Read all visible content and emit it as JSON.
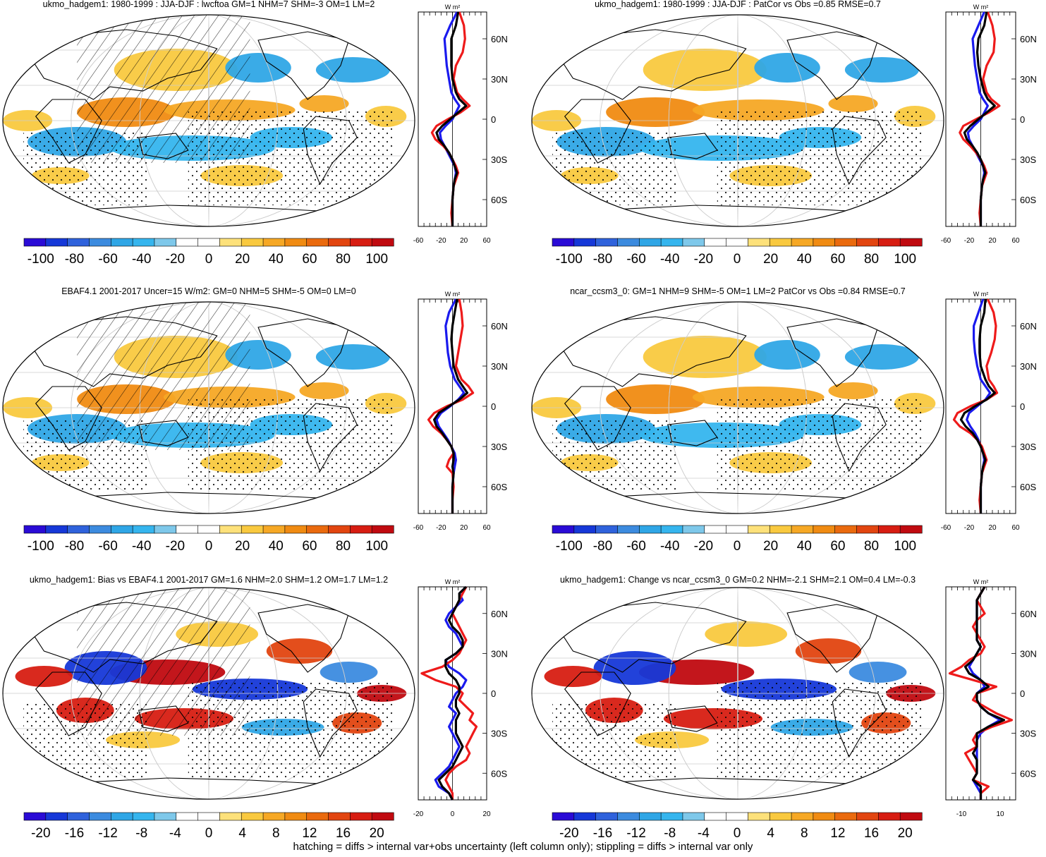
{
  "footer": "hatching = diffs > internal var+obs uncertainty (left column only); stippling = diffs > internal var only",
  "profile_units": "W m²",
  "colors": {
    "background": "#ffffff",
    "ocean_base": "#ffffff",
    "coast": "#000000",
    "zonal_lines": [
      "#1a1aee",
      "#ee1a1a",
      "#000000"
    ]
  },
  "palette": [
    "#2a0bd6",
    "#1638d8",
    "#2f62dc",
    "#3c8bdf",
    "#2fa6e6",
    "#35b5ee",
    "#7ec8ea",
    "#ffffff",
    "#ffffff",
    "#fde17a",
    "#f9c93f",
    "#f6a825",
    "#f08b12",
    "#ea6a0e",
    "#e24510",
    "#d71d12",
    "#c00a10"
  ],
  "chart_data": [
    {
      "type": "map+zonal-profile",
      "title": "ukmo_hadgem1: 1980-1999 : JJA-DJF : lwcftoa GM=1 NHM=7 SHM=-3 OM=1 LM=2",
      "overlays": [
        "hatching",
        "stippling"
      ],
      "colorbar": {
        "ticks": [
          "-100",
          "-80",
          "-60",
          "-40",
          "-20",
          "0",
          "20",
          "40",
          "60",
          "80",
          "100"
        ],
        "range": [
          -110,
          110
        ]
      },
      "profile": {
        "xlim": [
          -60,
          60
        ],
        "xticks": [
          "-60",
          "-20",
          "20",
          "60"
        ],
        "xtick_values": [
          -60,
          -20,
          20,
          60
        ],
        "yticks": [
          "60N",
          "30N",
          "0",
          "30S",
          "60S"
        ],
        "ytick_values": [
          60,
          30,
          0,
          -30,
          -60
        ],
        "lat": [
          80,
          70,
          60,
          50,
          40,
          30,
          20,
          15,
          10,
          5,
          0,
          -5,
          -10,
          -15,
          -20,
          -25,
          -30,
          -35,
          -40,
          -45,
          -50,
          -60,
          -70,
          -80
        ],
        "series": [
          {
            "name": "blue",
            "values": [
              8,
              -4,
              -14,
              -12,
              -10,
              -6,
              -2,
              4,
              12,
              6,
              0,
              -12,
              -22,
              -20,
              -14,
              -8,
              -2,
              4,
              6,
              4,
              2,
              0,
              0,
              0
            ]
          },
          {
            "name": "red",
            "values": [
              12,
              20,
              22,
              18,
              6,
              2,
              8,
              18,
              30,
              14,
              -8,
              -28,
              -36,
              -30,
              -16,
              -6,
              0,
              6,
              10,
              6,
              2,
              0,
              -2,
              0
            ]
          },
          {
            "name": "black",
            "values": [
              10,
              6,
              -2,
              -2,
              -2,
              0,
              6,
              12,
              24,
              10,
              -4,
              -18,
              -28,
              -24,
              -14,
              -6,
              0,
              4,
              8,
              4,
              2,
              0,
              0,
              0
            ]
          }
        ]
      }
    },
    {
      "type": "map+zonal-profile",
      "title": "ukmo_hadgem1: 1980-1999 : JJA-DJF : PatCor vs Obs =0.85 RMSE=0.7",
      "overlays": [
        "stippling"
      ],
      "colorbar": {
        "ticks": [
          "-100",
          "-80",
          "-60",
          "-40",
          "-20",
          "0",
          "20",
          "40",
          "60",
          "80",
          "100"
        ],
        "range": [
          -110,
          110
        ]
      },
      "profile": {
        "xlim": [
          -60,
          60
        ],
        "xticks": [
          "-60",
          "-20",
          "20",
          "60"
        ],
        "xtick_values": [
          -60,
          -20,
          20,
          60
        ],
        "yticks": [
          "60N",
          "30N",
          "0",
          "30S",
          "60S"
        ],
        "ytick_values": [
          60,
          30,
          0,
          -30,
          -60
        ],
        "lat": [
          80,
          70,
          60,
          50,
          40,
          30,
          20,
          15,
          10,
          5,
          0,
          -5,
          -10,
          -15,
          -20,
          -25,
          -30,
          -35,
          -40,
          -45,
          -50,
          -60,
          -70,
          -80
        ],
        "series": [
          {
            "name": "blue",
            "values": [
              6,
              -4,
              -14,
              -12,
              -10,
              -6,
              -2,
              4,
              12,
              6,
              0,
              -12,
              -22,
              -20,
              -14,
              -8,
              -2,
              4,
              6,
              4,
              2,
              0,
              0,
              0
            ]
          },
          {
            "name": "red",
            "values": [
              12,
              20,
              24,
              22,
              10,
              4,
              10,
              18,
              32,
              14,
              -8,
              -30,
              -36,
              -30,
              -18,
              -8,
              0,
              6,
              10,
              6,
              2,
              0,
              -2,
              0
            ]
          },
          {
            "name": "black",
            "values": [
              10,
              6,
              -4,
              -6,
              -4,
              0,
              6,
              12,
              24,
              10,
              -4,
              -18,
              -28,
              -24,
              -14,
              -6,
              0,
              4,
              8,
              4,
              2,
              0,
              0,
              0
            ]
          }
        ]
      }
    },
    {
      "type": "map+zonal-profile",
      "title": "EBAF4.1 2001-2017 Uncer=15 W/m2: GM=0 NHM=5 SHM=-5 OM=0 LM=0",
      "overlays": [
        "hatching",
        "stippling"
      ],
      "colorbar": {
        "ticks": [
          "-100",
          "-80",
          "-60",
          "-40",
          "-20",
          "0",
          "20",
          "40",
          "60",
          "80",
          "100"
        ],
        "range": [
          -110,
          110
        ]
      },
      "profile": {
        "xlim": [
          -60,
          60
        ],
        "xticks": [
          "-60",
          "-20",
          "20",
          "60"
        ],
        "xtick_values": [
          -60,
          -20,
          20,
          60
        ],
        "yticks": [
          "60N",
          "30N",
          "0",
          "30S",
          "60S"
        ],
        "ytick_values": [
          60,
          30,
          0,
          -30,
          -60
        ],
        "lat": [
          80,
          70,
          60,
          50,
          40,
          30,
          20,
          15,
          10,
          5,
          0,
          -5,
          -10,
          -15,
          -20,
          -25,
          -30,
          -35,
          -40,
          -45,
          -50,
          -60,
          -70,
          -80
        ],
        "series": [
          {
            "name": "blue",
            "values": [
              6,
              -6,
              -12,
              -10,
              -8,
              -4,
              4,
              12,
              20,
              10,
              -4,
              -20,
              -28,
              -24,
              -16,
              -8,
              -2,
              4,
              6,
              4,
              2,
              0,
              0,
              0
            ]
          },
          {
            "name": "red",
            "values": [
              12,
              16,
              18,
              14,
              10,
              6,
              16,
              28,
              36,
              18,
              -10,
              -32,
              -42,
              -34,
              -20,
              -10,
              -2,
              2,
              -6,
              -10,
              0,
              2,
              0,
              0
            ]
          },
          {
            "name": "black",
            "values": [
              8,
              4,
              0,
              -2,
              0,
              2,
              10,
              18,
              26,
              12,
              -6,
              -24,
              -32,
              -28,
              -18,
              -10,
              -2,
              2,
              2,
              0,
              2,
              0,
              0,
              0
            ]
          }
        ]
      }
    },
    {
      "type": "map+zonal-profile",
      "title": "ncar_ccsm3_0: GM=1 NHM=9 SHM=-5 OM=1 LM=2 PatCor vs Obs =0.84 RMSE=0.7",
      "overlays": [
        "stippling"
      ],
      "colorbar": {
        "ticks": [
          "-100",
          "-80",
          "-60",
          "-40",
          "-20",
          "0",
          "20",
          "40",
          "60",
          "80",
          "100"
        ],
        "range": [
          -110,
          110
        ]
      },
      "profile": {
        "xlim": [
          -60,
          60
        ],
        "xticks": [
          "-60",
          "-20",
          "20",
          "60"
        ],
        "xtick_values": [
          -60,
          -20,
          20,
          60
        ],
        "yticks": [
          "60N",
          "30N",
          "0",
          "30S",
          "60S"
        ],
        "ytick_values": [
          60,
          30,
          0,
          -30,
          -60
        ],
        "lat": [
          80,
          70,
          60,
          50,
          40,
          30,
          20,
          15,
          10,
          5,
          0,
          -5,
          -10,
          -15,
          -20,
          -25,
          -30,
          -35,
          -40,
          -45,
          -50,
          -60,
          -70,
          -80
        ],
        "series": [
          {
            "name": "blue",
            "values": [
              4,
              -4,
              -12,
              -12,
              -10,
              -6,
              0,
              8,
              16,
              8,
              -6,
              -20,
              -24,
              -18,
              -10,
              -4,
              0,
              4,
              6,
              4,
              2,
              0,
              0,
              0
            ]
          },
          {
            "name": "red",
            "values": [
              12,
              22,
              26,
              24,
              18,
              10,
              14,
              22,
              28,
              10,
              -18,
              -40,
              -46,
              -36,
              -18,
              -6,
              2,
              6,
              10,
              6,
              2,
              0,
              -2,
              0
            ]
          },
          {
            "name": "black",
            "values": [
              8,
              6,
              0,
              -2,
              -2,
              0,
              8,
              14,
              24,
              10,
              -10,
              -28,
              -34,
              -26,
              -14,
              -6,
              0,
              4,
              8,
              4,
              2,
              0,
              0,
              0
            ]
          }
        ]
      }
    },
    {
      "type": "map+zonal-profile",
      "title": "ukmo_hadgem1: Bias vs EBAF4.1 2001-2017 GM=1.6 NHM=2.0 SHM=1.2 OM=1.7 LM=1.2",
      "overlays": [
        "hatching",
        "stippling"
      ],
      "colorbar": {
        "ticks": [
          "-20",
          "-16",
          "-12",
          "-8",
          "-4",
          "0",
          "4",
          "8",
          "12",
          "16",
          "20"
        ],
        "range": [
          -22,
          22
        ]
      },
      "profile": {
        "xlim": [
          -20,
          20
        ],
        "xticks": [
          "-20",
          "0",
          "20"
        ],
        "xtick_values": [
          -20,
          0,
          20
        ],
        "yticks": [
          "60N",
          "30N",
          "0",
          "30S",
          "60S"
        ],
        "ytick_values": [
          60,
          30,
          0,
          -30,
          -60
        ],
        "lat": [
          80,
          75,
          70,
          65,
          60,
          55,
          50,
          45,
          40,
          35,
          30,
          25,
          20,
          15,
          10,
          5,
          0,
          -5,
          -10,
          -15,
          -20,
          -25,
          -30,
          -35,
          -40,
          -45,
          -50,
          -55,
          -60,
          -65,
          -70,
          -75,
          -80
        ],
        "series": [
          {
            "name": "blue",
            "values": [
              8,
              4,
              6,
              2,
              -2,
              -4,
              -2,
              2,
              4,
              6,
              2,
              -4,
              -2,
              4,
              8,
              6,
              2,
              0,
              -2,
              2,
              0,
              -2,
              0,
              2,
              4,
              2,
              0,
              -2,
              -6,
              -10,
              -8,
              -2,
              0
            ]
          },
          {
            "name": "red",
            "values": [
              8,
              6,
              4,
              2,
              0,
              2,
              4,
              6,
              8,
              6,
              4,
              0,
              -6,
              -18,
              -10,
              2,
              6,
              4,
              8,
              12,
              10,
              14,
              12,
              10,
              8,
              10,
              8,
              2,
              -2,
              -4,
              -2,
              0,
              0
            ]
          },
          {
            "name": "black",
            "values": [
              8,
              4,
              4,
              2,
              0,
              -2,
              0,
              4,
              6,
              6,
              2,
              -4,
              -4,
              -2,
              2,
              4,
              4,
              2,
              2,
              4,
              2,
              2,
              2,
              4,
              6,
              4,
              2,
              0,
              -4,
              -8,
              -6,
              -2,
              0
            ]
          }
        ]
      }
    },
    {
      "type": "map+zonal-profile",
      "title": "ukmo_hadgem1: Change vs ncar_ccsm3_0 GM=0.2 NHM=-2.1 SHM=2.1 OM=0.4 LM=-0.3",
      "overlays": [
        "stippling"
      ],
      "colorbar": {
        "ticks": [
          "-20",
          "-16",
          "-12",
          "-8",
          "-4",
          "0",
          "4",
          "8",
          "12",
          "16",
          "20"
        ],
        "range": [
          -22,
          22
        ]
      },
      "profile": {
        "xlim": [
          -18,
          18
        ],
        "xticks": [
          "-10",
          "10"
        ],
        "xtick_values": [
          -10,
          10
        ],
        "yticks": [
          "60N",
          "30N",
          "0",
          "30S",
          "60S"
        ],
        "ytick_values": [
          60,
          30,
          0,
          -30,
          -60
        ],
        "lat": [
          80,
          75,
          70,
          65,
          60,
          55,
          50,
          45,
          40,
          35,
          30,
          25,
          20,
          15,
          10,
          5,
          0,
          -5,
          -10,
          -15,
          -20,
          -25,
          -30,
          -35,
          -40,
          -45,
          -50,
          -55,
          -60,
          -65,
          -70,
          -75,
          -80
        ],
        "series": [
          {
            "name": "blue",
            "values": [
              2,
              0,
              -2,
              -2,
              -2,
              -2,
              -2,
              -2,
              -2,
              0,
              -2,
              -4,
              -6,
              -4,
              0,
              2,
              -2,
              -2,
              0,
              4,
              10,
              4,
              0,
              -2,
              -2,
              -2,
              -2,
              -2,
              -2,
              -4,
              -2,
              0,
              0
            ]
          },
          {
            "name": "red",
            "values": [
              2,
              0,
              -2,
              0,
              2,
              -2,
              -4,
              -2,
              0,
              2,
              0,
              -6,
              -10,
              -16,
              -4,
              8,
              -2,
              -4,
              2,
              8,
              16,
              6,
              -2,
              -4,
              -2,
              -8,
              -6,
              -4,
              -2,
              -4,
              4,
              0,
              0
            ]
          },
          {
            "name": "black",
            "values": [
              2,
              0,
              -2,
              -2,
              -2,
              -2,
              -2,
              -2,
              -2,
              0,
              -2,
              -4,
              -8,
              -6,
              0,
              4,
              -2,
              -2,
              0,
              4,
              12,
              4,
              -2,
              -2,
              -2,
              -4,
              -2,
              -2,
              -2,
              -4,
              0,
              0,
              0
            ]
          }
        ]
      }
    }
  ]
}
